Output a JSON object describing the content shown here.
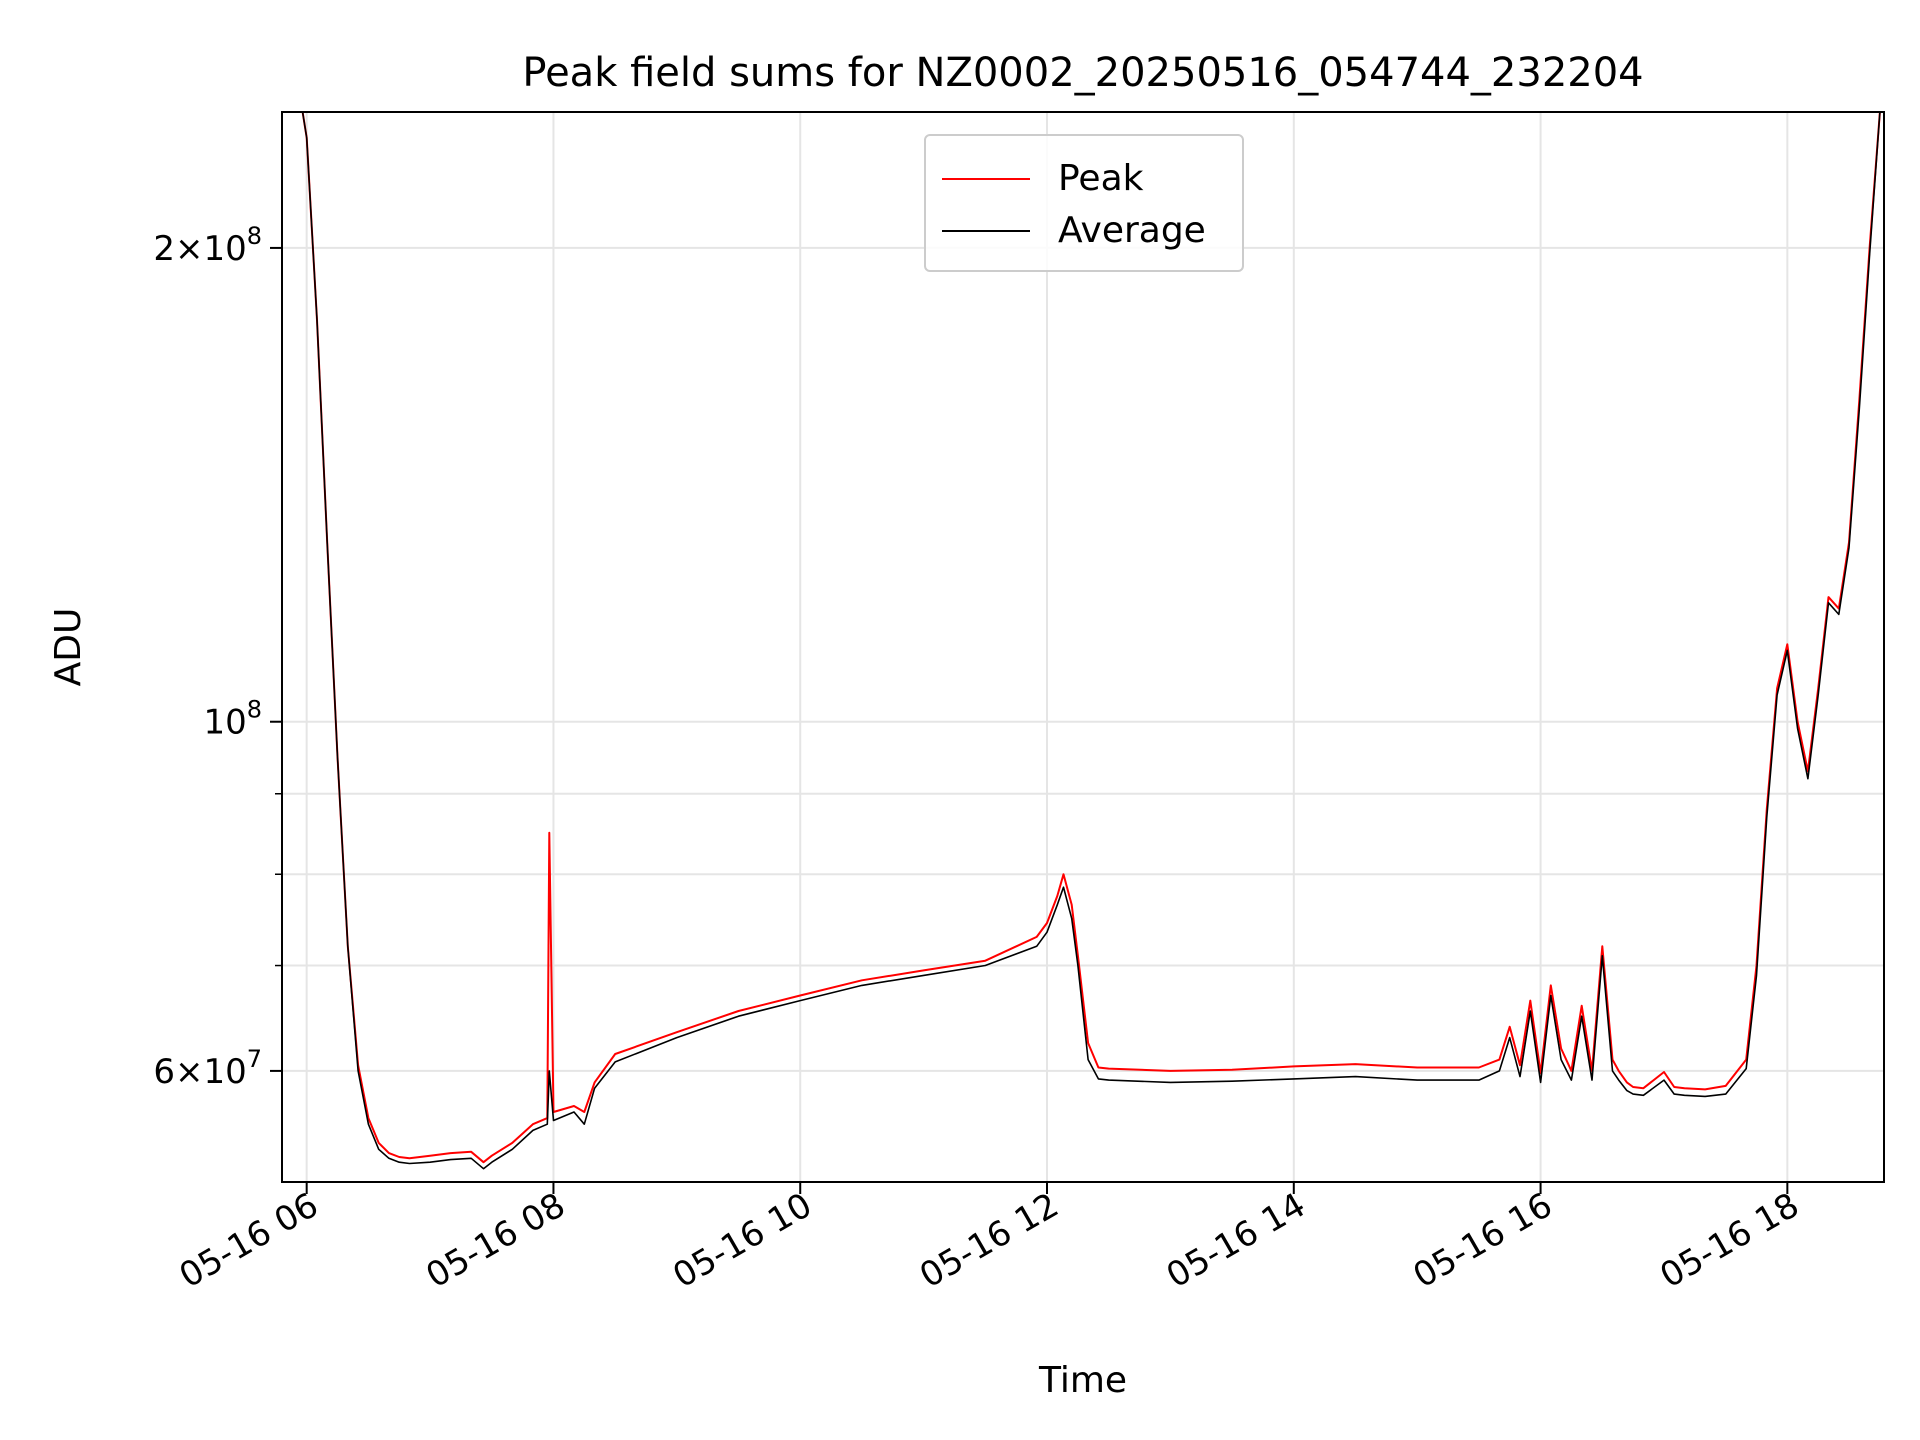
{
  "chart_data": {
    "type": "line",
    "title": "Peak field sums for NZ0002_20250516_054744_232204",
    "xlabel": "Time",
    "ylabel": "ADU",
    "yscale": "log",
    "xlim": [
      "05-16 05:48",
      "05-16 18:47"
    ],
    "ylim": [
      51000000,
      244000000
    ],
    "x_ticks": [
      "05-16 06",
      "05-16 08",
      "05-16 10",
      "05-16 12",
      "05-16 14",
      "05-16 16",
      "05-16 18"
    ],
    "y_tick_labels": [
      {
        "value": 200000000,
        "mantissa": "2",
        "exponent": "8"
      },
      {
        "value": 100000000,
        "mantissa": "",
        "exponent": "8"
      },
      {
        "value": 60000000,
        "mantissa": "6",
        "exponent": "7"
      }
    ],
    "y_minor_ticks": [
      70000000,
      80000000,
      90000000
    ],
    "grid": true,
    "legend_position": "upper center",
    "series": [
      {
        "name": "Peak",
        "color": "#ff0000",
        "x": [
          "05-16 05:58",
          "05-16 06:00",
          "06:05",
          "06:10",
          "06:15",
          "06:20",
          "06:25",
          "06:30",
          "06:35",
          "06:40",
          "06:45",
          "06:50",
          "07:00",
          "07:10",
          "07:20",
          "07:26",
          "07:30",
          "07:40",
          "07:50",
          "07:57",
          "07:58",
          "08:00",
          "08:10",
          "08:15",
          "08:20",
          "08:30",
          "09:00",
          "09:30",
          "10:00",
          "10:30",
          "11:00",
          "11:30",
          "11:55",
          "12:00",
          "12:05",
          "12:08",
          "12:12",
          "12:15",
          "12:20",
          "12:25",
          "12:30",
          "13:00",
          "13:30",
          "14:00",
          "14:30",
          "15:00",
          "15:30",
          "15:40",
          "15:45",
          "15:50",
          "15:55",
          "16:00",
          "16:05",
          "16:10",
          "16:15",
          "16:20",
          "16:25",
          "16:30",
          "16:35",
          "16:38",
          "16:42",
          "16:45",
          "16:50",
          "17:00",
          "17:05",
          "17:10",
          "17:20",
          "17:30",
          "17:40",
          "17:45",
          "17:50",
          "17:55",
          "18:00",
          "18:05",
          "18:10",
          "18:15",
          "18:20",
          "18:25",
          "18:30",
          "18:35",
          "18:40",
          "18:45"
        ],
        "y": [
          244000000,
          235000000,
          180000000,
          130000000,
          95000000,
          72000000,
          60500000,
          56000000,
          54000000,
          53200000,
          52900000,
          52800000,
          53000000,
          53200000,
          53300000,
          52500000,
          53000000,
          54000000,
          55500000,
          56000000,
          85000000,
          56500000,
          57000000,
          56500000,
          59000000,
          61500000,
          63500000,
          65500000,
          67000000,
          68500000,
          69500000,
          70500000,
          73000000,
          74500000,
          77500000,
          80000000,
          76500000,
          71000000,
          62500000,
          60300000,
          60200000,
          60000000,
          60100000,
          60400000,
          60600000,
          60300000,
          60300000,
          61000000,
          64000000,
          60500000,
          66500000,
          59800000,
          68000000,
          62000000,
          60000000,
          66000000,
          60000000,
          72000000,
          61000000,
          60000000,
          59000000,
          58600000,
          58500000,
          59900000,
          58600000,
          58500000,
          58400000,
          58700000,
          61000000,
          70000000,
          88000000,
          105000000,
          112000000,
          100000000,
          93000000,
          105000000,
          120000000,
          118000000,
          130000000,
          160000000,
          200000000,
          244000000
        ]
      },
      {
        "name": "Average",
        "color": "#000000",
        "x": [
          "05-16 05:58",
          "05-16 06:00",
          "06:05",
          "06:10",
          "06:15",
          "06:20",
          "06:25",
          "06:30",
          "06:35",
          "06:40",
          "06:45",
          "06:50",
          "07:00",
          "07:10",
          "07:20",
          "07:26",
          "07:30",
          "07:40",
          "07:50",
          "07:57",
          "07:58",
          "08:00",
          "08:10",
          "08:15",
          "08:20",
          "08:30",
          "09:00",
          "09:30",
          "10:00",
          "10:30",
          "11:00",
          "11:30",
          "11:55",
          "12:00",
          "12:05",
          "12:08",
          "12:12",
          "12:15",
          "12:20",
          "12:25",
          "12:30",
          "13:00",
          "13:30",
          "14:00",
          "14:30",
          "15:00",
          "15:30",
          "15:40",
          "15:45",
          "15:50",
          "15:55",
          "16:00",
          "16:05",
          "16:10",
          "16:15",
          "16:20",
          "16:25",
          "16:30",
          "16:35",
          "16:38",
          "16:42",
          "16:45",
          "16:50",
          "17:00",
          "17:05",
          "17:10",
          "17:20",
          "17:30",
          "17:40",
          "17:45",
          "17:50",
          "17:55",
          "18:00",
          "18:05",
          "18:10",
          "18:15",
          "18:20",
          "18:25",
          "18:30",
          "18:35",
          "18:40",
          "18:45"
        ],
        "y": [
          244000000,
          235000000,
          180000000,
          130000000,
          95000000,
          72000000,
          60000000,
          55500000,
          53500000,
          52800000,
          52500000,
          52400000,
          52500000,
          52700000,
          52800000,
          52000000,
          52500000,
          53500000,
          55000000,
          55500000,
          60000000,
          55800000,
          56500000,
          55500000,
          58500000,
          60800000,
          63000000,
          65000000,
          66500000,
          68000000,
          69000000,
          70000000,
          72000000,
          73500000,
          76500000,
          78500000,
          75000000,
          70000000,
          61000000,
          59300000,
          59200000,
          59000000,
          59100000,
          59300000,
          59500000,
          59200000,
          59200000,
          60000000,
          63000000,
          59500000,
          65500000,
          59000000,
          67000000,
          61000000,
          59200000,
          65000000,
          59200000,
          71000000,
          60000000,
          59200000,
          58300000,
          58000000,
          57900000,
          59200000,
          58000000,
          57900000,
          57800000,
          58000000,
          60200000,
          69000000,
          87000000,
          104000000,
          111000000,
          99000000,
          92000000,
          104000000,
          119000000,
          117000000,
          129000000,
          158000000,
          198000000,
          244000000
        ]
      }
    ]
  }
}
